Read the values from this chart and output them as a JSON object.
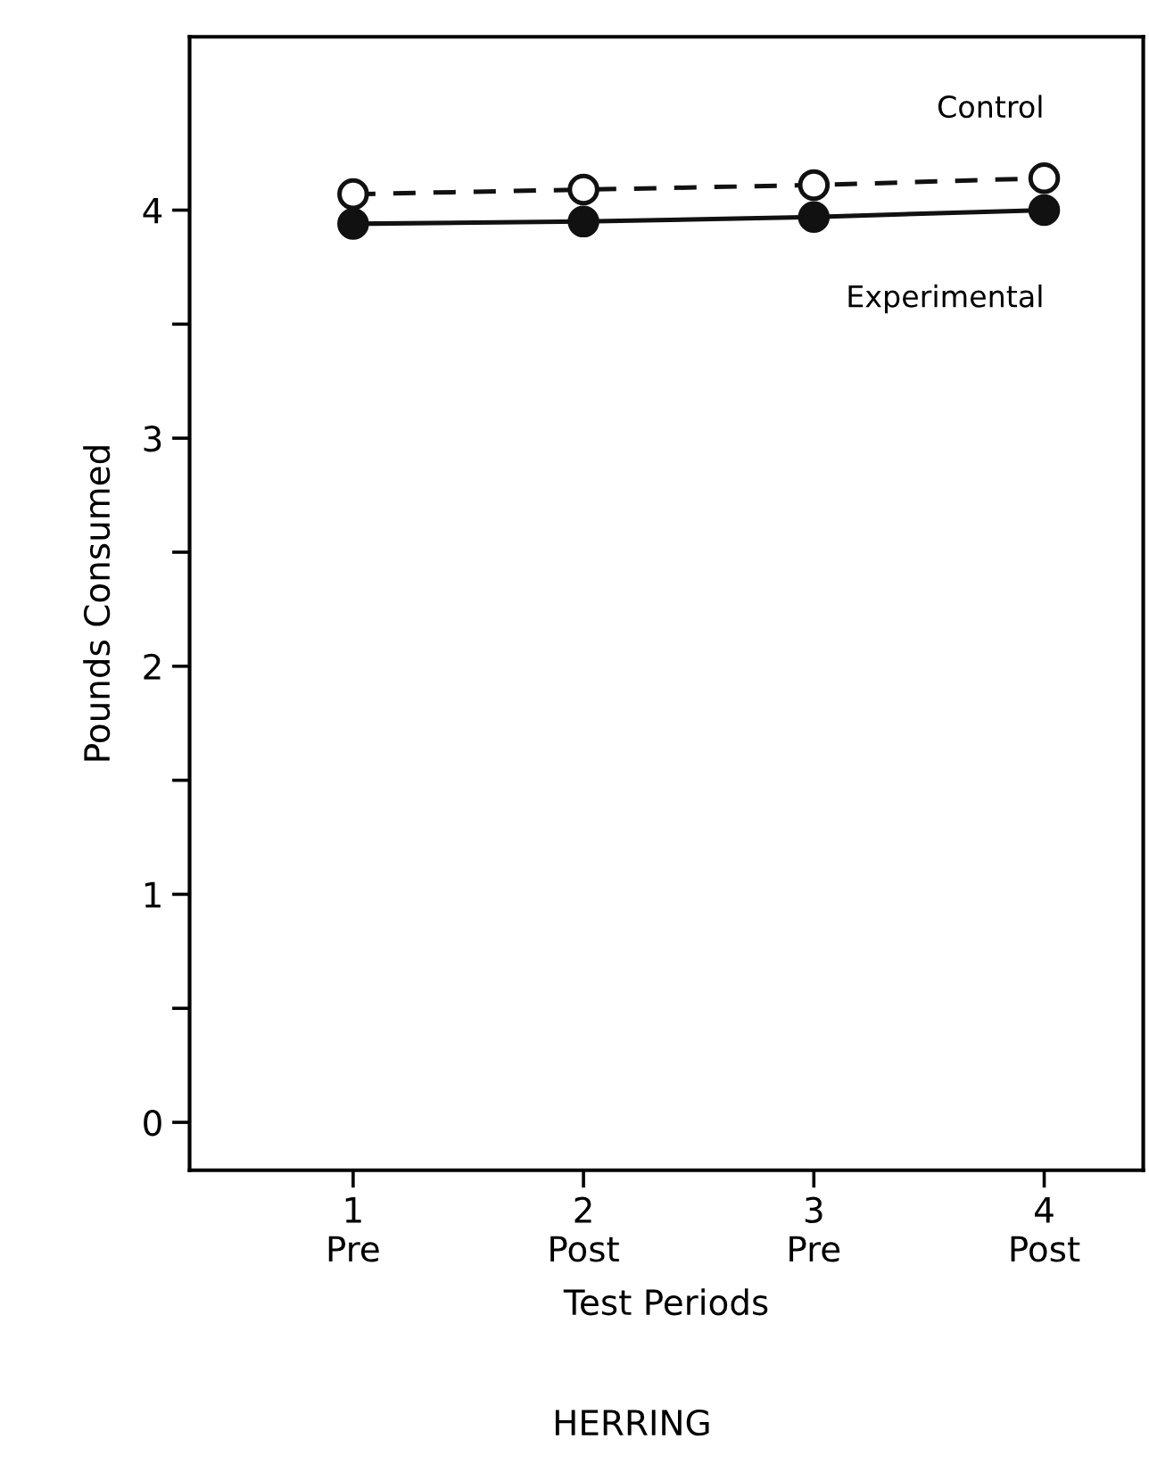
{
  "chart_data": {
    "type": "line",
    "title": "HERRING",
    "xlabel": "Test Periods",
    "ylabel": "Pounds Consumed",
    "x": [
      1,
      2,
      3,
      4
    ],
    "series": [
      {
        "name": "Control",
        "color": "#111111",
        "values": [
          4.07,
          4.09,
          4.11,
          4.14
        ],
        "line_style": "dashed",
        "marker": "circle"
      },
      {
        "name": "Experimental",
        "color": "#111111",
        "values": [
          3.94,
          3.95,
          3.97,
          4.0
        ],
        "line_style": "solid",
        "marker": "circle"
      }
    ],
    "xlim": [
      0.29,
      4.43
    ],
    "xticks": [
      {
        "value": 1,
        "label": "1\nPre"
      },
      {
        "value": 2,
        "label": "2\nPost"
      },
      {
        "value": 3,
        "label": "3\nPre"
      },
      {
        "value": 4,
        "label": "4\nPost"
      }
    ],
    "ylim": [
      -0.21,
      4.76
    ],
    "yticks": [
      0,
      {
        "value": 0.5,
        "label": null
      },
      1,
      {
        "value": 1.5,
        "label": null
      },
      2,
      {
        "value": 2.5,
        "label": null
      },
      3,
      {
        "value": 3.5,
        "label": null
      },
      4
    ],
    "grid": false,
    "legend": false
  }
}
